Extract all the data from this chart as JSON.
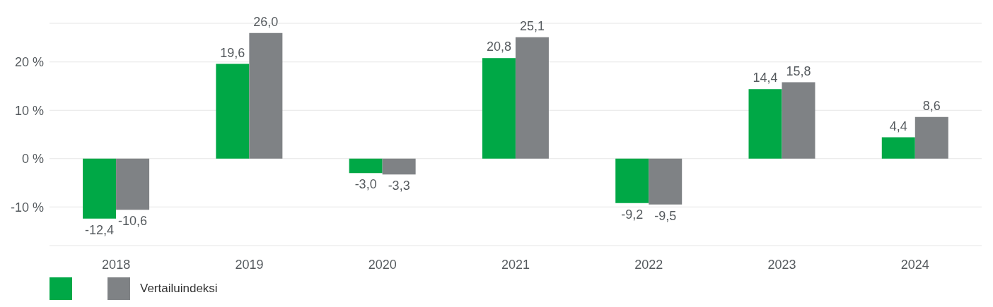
{
  "chart_data": {
    "type": "bar",
    "categories": [
      "2018",
      "2019",
      "2020",
      "2021",
      "2022",
      "2023",
      "2024"
    ],
    "series": [
      {
        "color": "#00a846",
        "values": [
          -12.4,
          19.6,
          -3.0,
          20.8,
          -9.2,
          14.4,
          4.4
        ],
        "value_labels": [
          "-12,4",
          "19,6",
          "-3,0",
          "20,8",
          "-9,2",
          "14,4",
          "4,4"
        ]
      },
      {
        "name": "Vertailuindeksi",
        "color": "#7f8285",
        "values": [
          -10.6,
          26.0,
          -3.3,
          25.1,
          -9.5,
          15.8,
          8.6
        ],
        "value_labels": [
          "-10,6",
          "26,0",
          "-3,3",
          "25,1",
          "-9,5",
          "15,8",
          "8,6"
        ]
      }
    ],
    "ylim": [
      -18,
      28
    ],
    "yticks": [
      {
        "value": -10,
        "label": "-10 %"
      },
      {
        "value": 0,
        "label": "0 %"
      },
      {
        "value": 10,
        "label": "10 %"
      },
      {
        "value": 20,
        "label": "20 %"
      }
    ],
    "grid": "y",
    "legend": "bottom left"
  }
}
